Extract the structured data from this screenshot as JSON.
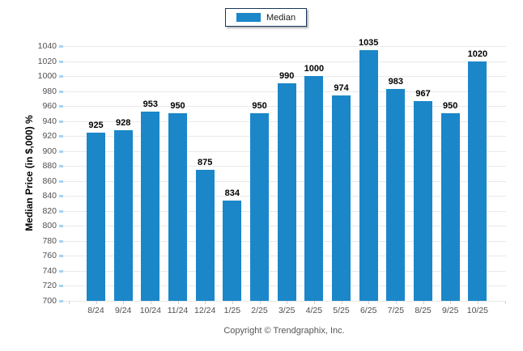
{
  "chart_data": {
    "type": "bar",
    "title": "",
    "categories": [
      "8/24",
      "9/24",
      "10/24",
      "11/24",
      "12/24",
      "1/25",
      "2/25",
      "3/25",
      "4/25",
      "5/25",
      "6/25",
      "7/25",
      "8/25",
      "9/25",
      "10/25"
    ],
    "series": [
      {
        "name": "Median",
        "values": [
          925,
          928,
          953,
          950,
          875,
          834,
          950,
          990,
          1000,
          974,
          1035,
          983,
          967,
          950,
          1020
        ]
      }
    ],
    "xlabel": "",
    "ylabel": "Median Price (in $,000) %",
    "ylim": [
      700,
      1040
    ],
    "ytick_step": 20,
    "grid": true,
    "legend_position": "top-center",
    "value_labels": true
  },
  "legend": {
    "items": [
      {
        "label": "Median",
        "color": "#1b87c9"
      }
    ]
  },
  "footer": {
    "text": "Copyright © Trendgraphix, Inc."
  },
  "colors": {
    "bar": "#1b87c9",
    "grid": "#e9e9e9",
    "y_tick": "#a5d3f4",
    "x_tick": "#cfcfcf",
    "axis_text": "#4f4f4f",
    "value_label": "#000000",
    "legend_border": "#16365d",
    "footer_text": "#555555"
  }
}
